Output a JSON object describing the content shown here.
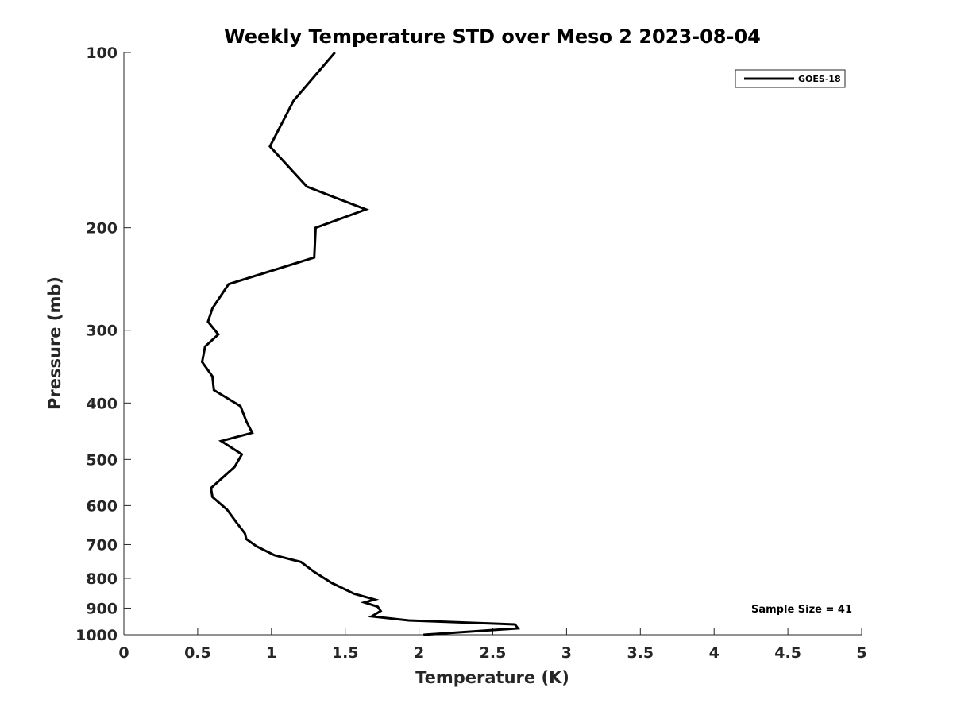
{
  "chart_data": {
    "type": "line",
    "title": "Weekly Temperature STD over Meso 2 2023-08-04",
    "xlabel": "Temperature (K)",
    "ylabel": "Pressure (mb)",
    "xlim": [
      0,
      5
    ],
    "ylim": [
      100,
      1000
    ],
    "yscale": "log",
    "y_reversed": true,
    "grid": false,
    "legend_position": "top-right",
    "x_ticks": [
      "0",
      "0.5",
      "1",
      "1.5",
      "2",
      "2.5",
      "3",
      "3.5",
      "4",
      "4.5",
      "5"
    ],
    "y_ticks": [
      "100",
      "200",
      "300",
      "400",
      "500",
      "600",
      "700",
      "800",
      "900",
      "1000"
    ],
    "annotation": "Sample Size = 41",
    "series": [
      {
        "name": "GOES-18",
        "color": "#000000",
        "x": [
          1.43,
          1.15,
          0.99,
          1.24,
          1.64,
          1.3,
          1.29,
          0.71,
          0.6,
          0.57,
          0.64,
          0.55,
          0.53,
          0.6,
          0.61,
          0.79,
          0.83,
          0.87,
          0.66,
          0.8,
          0.75,
          0.59,
          0.6,
          0.7,
          0.76,
          0.82,
          0.83,
          0.9,
          1.02,
          1.2,
          1.29,
          1.41,
          1.56,
          1.7,
          1.63,
          1.72,
          1.74,
          1.68,
          1.93,
          2.65,
          2.67,
          2.03
        ],
        "y": [
          100,
          121,
          145,
          170,
          186,
          200,
          225,
          250,
          275,
          290,
          305,
          320,
          340,
          360,
          380,
          405,
          430,
          450,
          465,
          490,
          515,
          560,
          580,
          610,
          640,
          670,
          685,
          705,
          730,
          750,
          780,
          815,
          850,
          870,
          880,
          895,
          910,
          930,
          945,
          960,
          975,
          1000
        ]
      }
    ]
  }
}
